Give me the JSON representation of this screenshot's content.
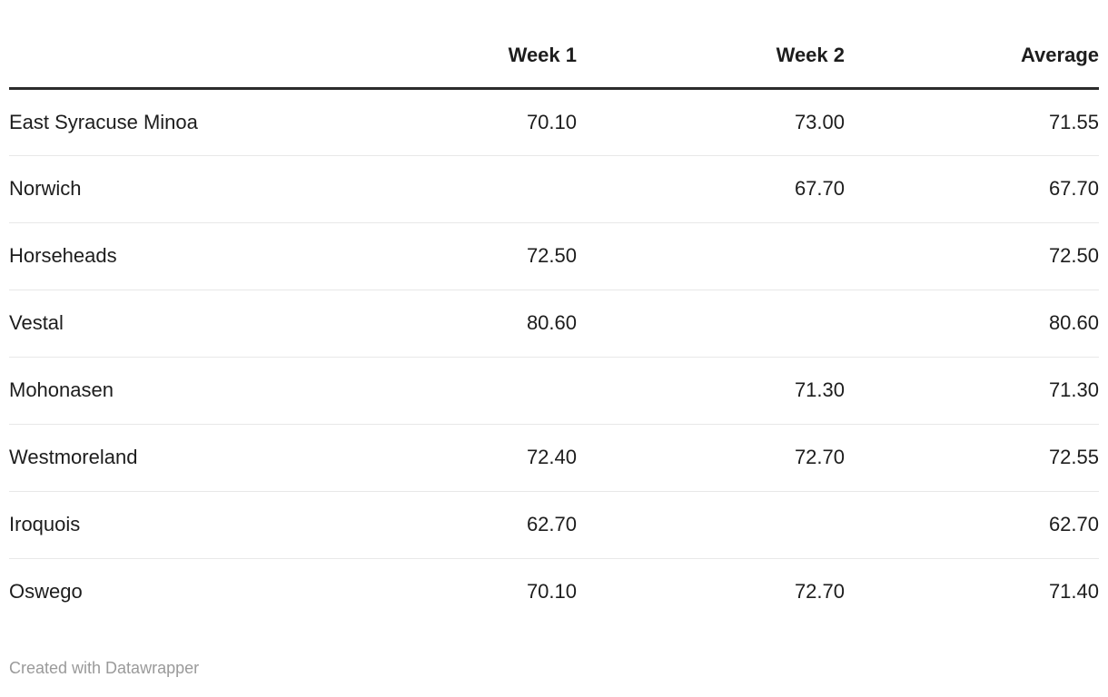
{
  "chart_data": {
    "type": "table",
    "columns": [
      "",
      "Week 1",
      "Week 2",
      "Average"
    ],
    "rows": [
      {
        "name": "East Syracuse Minoa",
        "values": [
          "70.10",
          "73.00",
          "71.55"
        ]
      },
      {
        "name": "Norwich",
        "values": [
          "",
          "67.70",
          "67.70"
        ]
      },
      {
        "name": "Horseheads",
        "values": [
          "72.50",
          "",
          "72.50"
        ]
      },
      {
        "name": "Vestal",
        "values": [
          "80.60",
          "",
          "80.60"
        ]
      },
      {
        "name": "Mohonasen",
        "values": [
          "",
          "71.30",
          "71.30"
        ]
      },
      {
        "name": "Westmoreland",
        "values": [
          "72.40",
          "72.70",
          "72.55"
        ]
      },
      {
        "name": "Iroquois",
        "values": [
          "62.70",
          "",
          "62.70"
        ]
      },
      {
        "name": "Oswego",
        "values": [
          "70.10",
          "72.70",
          "71.40"
        ]
      }
    ],
    "layout": {
      "numeric_alignment": "right",
      "header_bold": true,
      "grid": "horizontal-dividers-only",
      "legend": "none"
    }
  },
  "footer": {
    "attribution": "Created with Datawrapper"
  },
  "colors": {
    "text": "#1d1d1d",
    "header_rule": "#2b2b2b",
    "row_divider": "#e8e8e8",
    "footer_text": "#9a9a9a",
    "background": "#ffffff"
  }
}
